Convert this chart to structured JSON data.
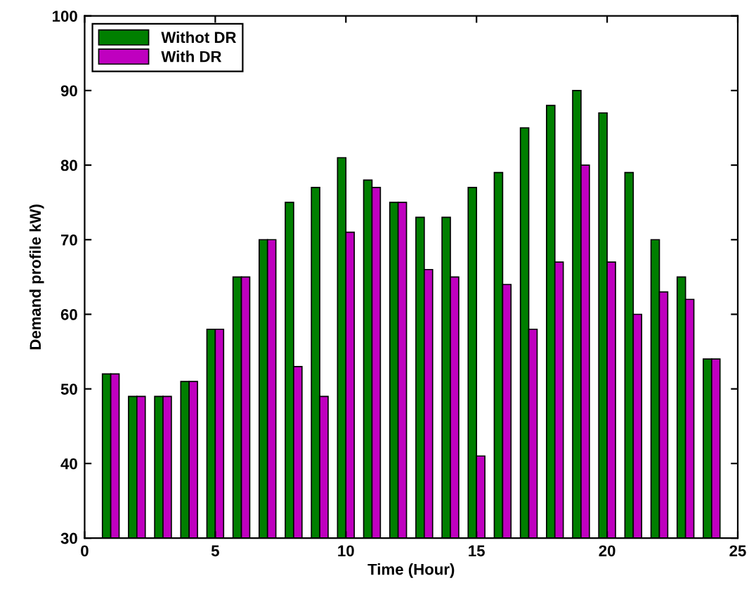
{
  "chart_data": {
    "type": "bar",
    "xlabel": "Time (Hour)",
    "ylabel": "Demand profile kW)",
    "x": [
      1,
      2,
      3,
      4,
      5,
      6,
      7,
      8,
      9,
      10,
      11,
      12,
      13,
      14,
      15,
      16,
      17,
      18,
      19,
      20,
      21,
      22,
      23,
      24
    ],
    "series": [
      {
        "name": "Withot DR",
        "color": "#007f00",
        "values": [
          52,
          49,
          49,
          51,
          58,
          65,
          70,
          75,
          77,
          81,
          78,
          75,
          73,
          73,
          77,
          79,
          85,
          88,
          90,
          87,
          79,
          70,
          65,
          54
        ]
      },
      {
        "name": "With DR",
        "color": "#bf00bf",
        "values": [
          52,
          49,
          49,
          51,
          58,
          65,
          70,
          53,
          49,
          71,
          77,
          75,
          66,
          65,
          41,
          64,
          58,
          67,
          80,
          67,
          60,
          63,
          62,
          54
        ]
      }
    ],
    "xlim": [
      0,
      25
    ],
    "xticks": [
      0,
      5,
      10,
      15,
      20,
      25
    ],
    "ylim": [
      30,
      100
    ],
    "yticks": [
      30,
      40,
      50,
      60,
      70,
      80,
      90,
      100
    ],
    "legend": "top left",
    "grid": false
  }
}
